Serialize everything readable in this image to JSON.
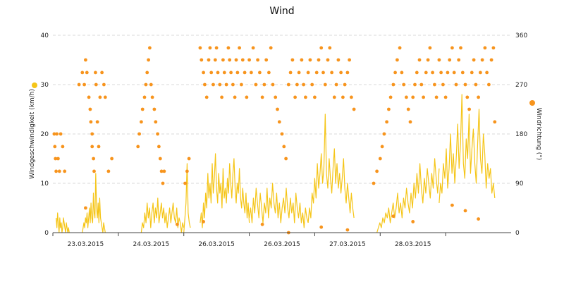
{
  "chart_data": {
    "type": "line",
    "title": "Wind",
    "ylabel_left": "Windgeschwindigkeit (km/h)",
    "ylabel_right": "Windrichtung (°)",
    "ylim_left": [
      0,
      40
    ],
    "ylim_right": [
      0,
      360
    ],
    "yticks_left": [
      "0",
      "10",
      "20",
      "30",
      "40"
    ],
    "yticks_right": [
      "0",
      "90",
      "180",
      "270",
      "360"
    ],
    "x_tick_labels": [
      "23.03.2015",
      "24.03.2015",
      "26.03.2015",
      "26.03.2015",
      "27.03.2015",
      "28.03.2015"
    ],
    "x_range_days": [
      0,
      7
    ],
    "grid": true,
    "colors": {
      "speed": "#f5c518",
      "direction": "#f7941d",
      "speed_legend": "#f5c518",
      "direction_legend": "#f7941d"
    },
    "series": [
      {
        "name": "Windgeschwindigkeit (km/h)",
        "type": "line",
        "axis": "left",
        "segments": [
          {
            "x_start": 0.05,
            "x_end": 0.25,
            "values": [
              3,
              1,
              4,
              2,
              0,
              3,
              1,
              2,
              0,
              1,
              3,
              2,
              1,
              0,
              2,
              1,
              0,
              1,
              0
            ]
          },
          {
            "x_start": 0.45,
            "x_end": 0.8,
            "values": [
              0,
              1,
              2,
              1,
              3,
              2,
              4,
              1,
              3,
              5,
              2,
              6,
              3,
              2,
              8,
              4,
              3,
              12,
              5,
              3,
              6,
              2,
              7,
              3,
              2,
              1,
              0,
              2,
              1,
              0
            ]
          },
          {
            "x_start": 1.35,
            "x_end": 2.0,
            "values": [
              0,
              2,
              1,
              4,
              2,
              6,
              3,
              5,
              1,
              4,
              6,
              2,
              5,
              3,
              7,
              2,
              4,
              6,
              3,
              5,
              2,
              4,
              1,
              3,
              5,
              2,
              4,
              6,
              3,
              2,
              5,
              1,
              3,
              2,
              0,
              2,
              1
            ]
          },
          {
            "x_start": 2.0,
            "x_end": 2.1,
            "values": [
              0,
              3,
              6,
              14,
              4,
              2,
              1
            ]
          },
          {
            "x_start": 2.25,
            "x_end": 3.0,
            "values": [
              2,
              4,
              1,
              6,
              3,
              8,
              5,
              12,
              7,
              10,
              6,
              14,
              8,
              11,
              16,
              9,
              6,
              12,
              8,
              10,
              5,
              13,
              7,
              9,
              6,
              11,
              8,
              14,
              10,
              7,
              12,
              15,
              9,
              6,
              10,
              8,
              13,
              7,
              5,
              9,
              6,
              4,
              8,
              3,
              6,
              2
            ]
          },
          {
            "x_start": 3.0,
            "x_end": 3.9,
            "values": [
              3,
              5,
              2,
              7,
              4,
              9,
              6,
              3,
              8,
              5,
              2,
              6,
              4,
              9,
              3,
              7,
              5,
              10,
              6,
              4,
              8,
              3,
              6,
              2,
              5,
              7,
              4,
              9,
              5,
              3,
              7,
              4,
              6,
              2,
              8,
              5,
              3,
              6,
              2,
              4,
              1,
              5,
              3,
              2
            ]
          },
          {
            "x_start": 3.9,
            "x_end": 4.6,
            "values": [
              2,
              5,
              3,
              8,
              6,
              11,
              7,
              14,
              9,
              12,
              16,
              10,
              13,
              24,
              12,
              9,
              15,
              11,
              8,
              13,
              17,
              10,
              14,
              9,
              12,
              8,
              11,
              15,
              9,
              6,
              10,
              7,
              4,
              8,
              5,
              3
            ]
          },
          {
            "x_start": 4.95,
            "x_end": 5.9,
            "values": [
              0,
              1,
              2,
              1,
              3,
              2,
              4,
              3,
              5,
              2,
              4,
              6,
              3,
              5,
              8,
              4,
              6,
              3,
              7,
              5,
              9,
              6,
              4,
              8,
              5,
              10,
              7,
              12,
              8,
              14,
              9,
              6,
              11,
              8,
              13,
              10,
              7,
              12,
              9,
              15,
              11,
              8,
              13
            ]
          },
          {
            "x_start": 5.9,
            "x_end": 6.75,
            "values": [
              6,
              10,
              8,
              14,
              11,
              17,
              9,
              13,
              20,
              12,
              16,
              10,
              15,
              22,
              13,
              18,
              28,
              14,
              11,
              19,
              15,
              24,
              12,
              17,
              21,
              14,
              10,
              18,
              25,
              15,
              12,
              20,
              16,
              9,
              14,
              11,
              13,
              8,
              10,
              7
            ]
          }
        ]
      },
      {
        "name": "Windrichtung (°)",
        "type": "scatter",
        "axis": "right",
        "points": [
          [
            0.02,
            180
          ],
          [
            0.03,
            157
          ],
          [
            0.04,
            135
          ],
          [
            0.05,
            112
          ],
          [
            0.06,
            180
          ],
          [
            0.08,
            135
          ],
          [
            0.1,
            112
          ],
          [
            0.12,
            180
          ],
          [
            0.15,
            157
          ],
          [
            0.18,
            112
          ],
          [
            0.4,
            270
          ],
          [
            0.45,
            292
          ],
          [
            0.48,
            270
          ],
          [
            0.5,
            315
          ],
          [
            0.52,
            292
          ],
          [
            0.55,
            247
          ],
          [
            0.57,
            225
          ],
          [
            0.58,
            202
          ],
          [
            0.6,
            180
          ],
          [
            0.6,
            157
          ],
          [
            0.62,
            135
          ],
          [
            0.63,
            112
          ],
          [
            0.65,
            292
          ],
          [
            0.66,
            270
          ],
          [
            0.68,
            202
          ],
          [
            0.7,
            157
          ],
          [
            0.72,
            247
          ],
          [
            0.75,
            292
          ],
          [
            0.78,
            270
          ],
          [
            0.8,
            247
          ],
          [
            0.85,
            112
          ],
          [
            0.9,
            135
          ],
          [
            1.3,
            157
          ],
          [
            1.32,
            180
          ],
          [
            1.35,
            202
          ],
          [
            1.37,
            225
          ],
          [
            1.4,
            247
          ],
          [
            1.42,
            270
          ],
          [
            1.44,
            292
          ],
          [
            1.46,
            315
          ],
          [
            1.48,
            337
          ],
          [
            1.5,
            270
          ],
          [
            1.52,
            247
          ],
          [
            1.55,
            225
          ],
          [
            1.57,
            202
          ],
          [
            1.6,
            180
          ],
          [
            1.62,
            157
          ],
          [
            1.64,
            135
          ],
          [
            1.66,
            112
          ],
          [
            1.68,
            90
          ],
          [
            1.7,
            112
          ],
          [
            2.02,
            90
          ],
          [
            2.05,
            112
          ],
          [
            2.08,
            135
          ],
          [
            2.25,
            337
          ],
          [
            2.27,
            315
          ],
          [
            2.3,
            292
          ],
          [
            2.32,
            270
          ],
          [
            2.35,
            247
          ],
          [
            2.38,
            315
          ],
          [
            2.4,
            337
          ],
          [
            2.42,
            292
          ],
          [
            2.45,
            270
          ],
          [
            2.48,
            315
          ],
          [
            2.5,
            337
          ],
          [
            2.52,
            292
          ],
          [
            2.55,
            270
          ],
          [
            2.58,
            247
          ],
          [
            2.6,
            315
          ],
          [
            2.62,
            292
          ],
          [
            2.65,
            270
          ],
          [
            2.68,
            337
          ],
          [
            2.7,
            315
          ],
          [
            2.72,
            292
          ],
          [
            2.75,
            270
          ],
          [
            2.78,
            247
          ],
          [
            2.8,
            315
          ],
          [
            2.82,
            292
          ],
          [
            2.85,
            337
          ],
          [
            2.88,
            270
          ],
          [
            2.9,
            315
          ],
          [
            2.93,
            292
          ],
          [
            2.96,
            247
          ],
          [
            3.0,
            315
          ],
          [
            3.03,
            292
          ],
          [
            3.06,
            337
          ],
          [
            3.1,
            270
          ],
          [
            3.13,
            315
          ],
          [
            3.16,
            292
          ],
          [
            3.2,
            247
          ],
          [
            3.23,
            270
          ],
          [
            3.26,
            315
          ],
          [
            3.3,
            292
          ],
          [
            3.33,
            337
          ],
          [
            3.36,
            270
          ],
          [
            3.4,
            247
          ],
          [
            3.43,
            225
          ],
          [
            3.46,
            202
          ],
          [
            3.5,
            180
          ],
          [
            3.53,
            157
          ],
          [
            3.56,
            135
          ],
          [
            3.6,
            270
          ],
          [
            3.63,
            292
          ],
          [
            3.66,
            315
          ],
          [
            3.7,
            247
          ],
          [
            3.73,
            270
          ],
          [
            3.76,
            292
          ],
          [
            3.8,
            315
          ],
          [
            3.83,
            270
          ],
          [
            3.86,
            247
          ],
          [
            3.9,
            292
          ],
          [
            3.93,
            315
          ],
          [
            3.96,
            270
          ],
          [
            4.0,
            247
          ],
          [
            4.03,
            292
          ],
          [
            4.06,
            315
          ],
          [
            4.1,
            337
          ],
          [
            4.13,
            292
          ],
          [
            4.16,
            270
          ],
          [
            4.2,
            315
          ],
          [
            4.23,
            337
          ],
          [
            4.26,
            292
          ],
          [
            4.3,
            247
          ],
          [
            4.33,
            270
          ],
          [
            4.36,
            315
          ],
          [
            4.4,
            292
          ],
          [
            4.43,
            247
          ],
          [
            4.46,
            270
          ],
          [
            4.5,
            292
          ],
          [
            4.53,
            315
          ],
          [
            4.56,
            247
          ],
          [
            4.6,
            225
          ],
          [
            4.9,
            90
          ],
          [
            4.95,
            112
          ],
          [
            5.0,
            135
          ],
          [
            5.03,
            157
          ],
          [
            5.06,
            180
          ],
          [
            5.1,
            202
          ],
          [
            5.13,
            225
          ],
          [
            5.16,
            247
          ],
          [
            5.2,
            270
          ],
          [
            5.23,
            292
          ],
          [
            5.26,
            315
          ],
          [
            5.3,
            337
          ],
          [
            5.33,
            292
          ],
          [
            5.36,
            270
          ],
          [
            5.4,
            247
          ],
          [
            5.43,
            225
          ],
          [
            5.46,
            202
          ],
          [
            5.5,
            247
          ],
          [
            5.53,
            270
          ],
          [
            5.56,
            292
          ],
          [
            5.6,
            315
          ],
          [
            5.63,
            270
          ],
          [
            5.66,
            247
          ],
          [
            5.7,
            292
          ],
          [
            5.73,
            315
          ],
          [
            5.76,
            337
          ],
          [
            5.8,
            292
          ],
          [
            5.83,
            270
          ],
          [
            5.86,
            247
          ],
          [
            5.9,
            315
          ],
          [
            5.93,
            292
          ],
          [
            5.96,
            270
          ],
          [
            6.0,
            247
          ],
          [
            6.03,
            292
          ],
          [
            6.06,
            315
          ],
          [
            6.1,
            337
          ],
          [
            6.13,
            292
          ],
          [
            6.16,
            270
          ],
          [
            6.2,
            315
          ],
          [
            6.23,
            337
          ],
          [
            6.26,
            292
          ],
          [
            6.3,
            270
          ],
          [
            6.33,
            247
          ],
          [
            6.36,
            225
          ],
          [
            6.4,
            292
          ],
          [
            6.43,
            315
          ],
          [
            6.46,
            270
          ],
          [
            6.5,
            247
          ],
          [
            6.53,
            292
          ],
          [
            6.56,
            315
          ],
          [
            6.6,
            337
          ],
          [
            6.63,
            292
          ],
          [
            6.66,
            270
          ],
          [
            6.7,
            315
          ],
          [
            6.73,
            337
          ],
          [
            6.75,
            202
          ],
          [
            0.5,
            45
          ],
          [
            2.3,
            20
          ],
          [
            3.2,
            15
          ],
          [
            4.1,
            10
          ],
          [
            5.2,
            30
          ],
          [
            6.1,
            50
          ],
          [
            6.5,
            25
          ],
          [
            1.9,
            15
          ],
          [
            3.6,
            0
          ],
          [
            4.5,
            5
          ],
          [
            5.5,
            20
          ],
          [
            6.3,
            40
          ]
        ]
      }
    ]
  }
}
